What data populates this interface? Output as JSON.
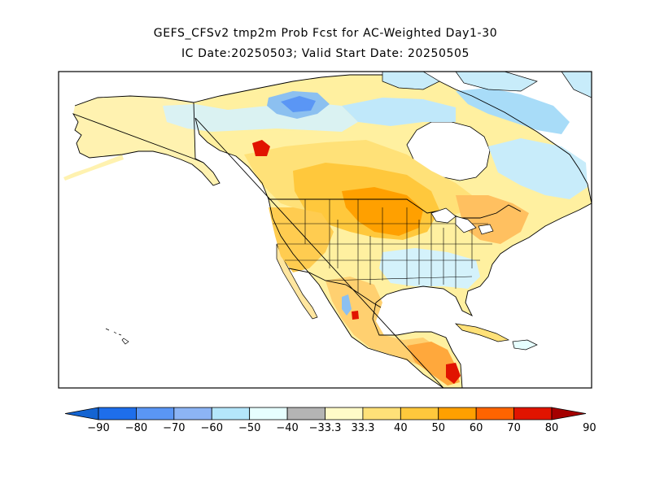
{
  "title_line1": "GEFS_CFSv2 tmp2m Prob Fcst for AC-Weighted Day1-30",
  "title_line2": "IC Date:20250503; Valid Start Date: 20250505",
  "map": {
    "region": "North America",
    "colors": {
      "background_ocean": "#ffffff",
      "border": "#000000",
      "neutral": "#ffffff"
    }
  },
  "colorbar": {
    "colors": [
      "#1464d2",
      "#1e6eeb",
      "#5a96f5",
      "#8cb4f5",
      "#b4e6fa",
      "#e6ffff",
      "#b4b4b4",
      "#fffac8",
      "#ffe178",
      "#ffc83c",
      "#ffa000",
      "#ff6400",
      "#e11400",
      "#a50000"
    ],
    "tick_labels": [
      "-90",
      "-80",
      "-70",
      "-60",
      "-50",
      "-40",
      "-33.3",
      "33.3",
      "40",
      "50",
      "60",
      "70",
      "80",
      "90"
    ]
  }
}
